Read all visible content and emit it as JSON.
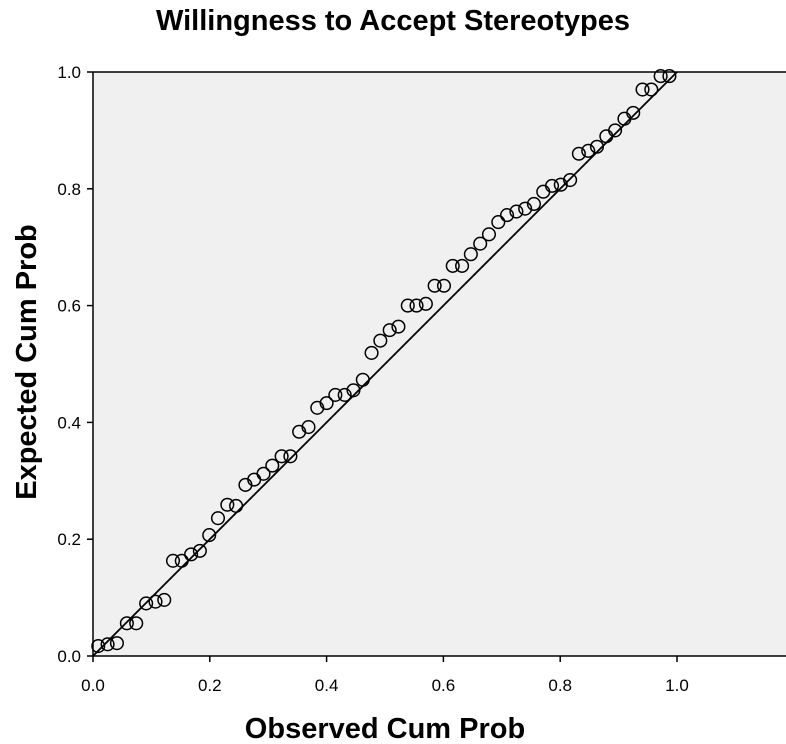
{
  "chart_data": {
    "type": "scatter",
    "title": "Willingness to Accept Stereotypes",
    "xlabel": "Observed Cum Prob",
    "ylabel": "Expected Cum Prob",
    "xlim": [
      0,
      1.2
    ],
    "ylim": [
      0,
      1.0
    ],
    "xticks": [
      "0.0",
      "0.2",
      "0.4",
      "0.6",
      "0.8",
      "1.0"
    ],
    "yticks": [
      "0.0",
      "0.2",
      "0.4",
      "0.6",
      "0.8",
      "1.0"
    ],
    "grid": false,
    "plot_background": "#f0f0f0",
    "reference_line": {
      "x": [
        0,
        1
      ],
      "y": [
        0,
        1
      ]
    },
    "series": [
      {
        "x": [
          0.009,
          0.025,
          0.041,
          0.058,
          0.074,
          0.091,
          0.107,
          0.122,
          0.137,
          0.152,
          0.168,
          0.183,
          0.199,
          0.214,
          0.23,
          0.245,
          0.261,
          0.276,
          0.292,
          0.307,
          0.323,
          0.338,
          0.353,
          0.369,
          0.384,
          0.4,
          0.415,
          0.431,
          0.446,
          0.462,
          0.477,
          0.492,
          0.508,
          0.523,
          0.539,
          0.554,
          0.57,
          0.585,
          0.601,
          0.616,
          0.632,
          0.647,
          0.663,
          0.678,
          0.694,
          0.709,
          0.725,
          0.74,
          0.755,
          0.771,
          0.786,
          0.801,
          0.817,
          0.832,
          0.848,
          0.863,
          0.879,
          0.894,
          0.91,
          0.925,
          0.941,
          0.956,
          0.972,
          0.987
        ],
        "y": [
          0.017,
          0.02,
          0.022,
          0.056,
          0.056,
          0.09,
          0.093,
          0.096,
          0.163,
          0.163,
          0.174,
          0.18,
          0.207,
          0.236,
          0.259,
          0.257,
          0.293,
          0.302,
          0.312,
          0.326,
          0.342,
          0.342,
          0.384,
          0.392,
          0.425,
          0.433,
          0.447,
          0.447,
          0.455,
          0.473,
          0.519,
          0.54,
          0.558,
          0.564,
          0.6,
          0.6,
          0.603,
          0.634,
          0.634,
          0.668,
          0.668,
          0.688,
          0.706,
          0.722,
          0.743,
          0.755,
          0.761,
          0.766,
          0.774,
          0.795,
          0.805,
          0.807,
          0.815,
          0.86,
          0.865,
          0.872,
          0.89,
          0.9,
          0.92,
          0.93,
          0.97,
          0.97,
          0.993,
          0.993
        ]
      }
    ]
  }
}
